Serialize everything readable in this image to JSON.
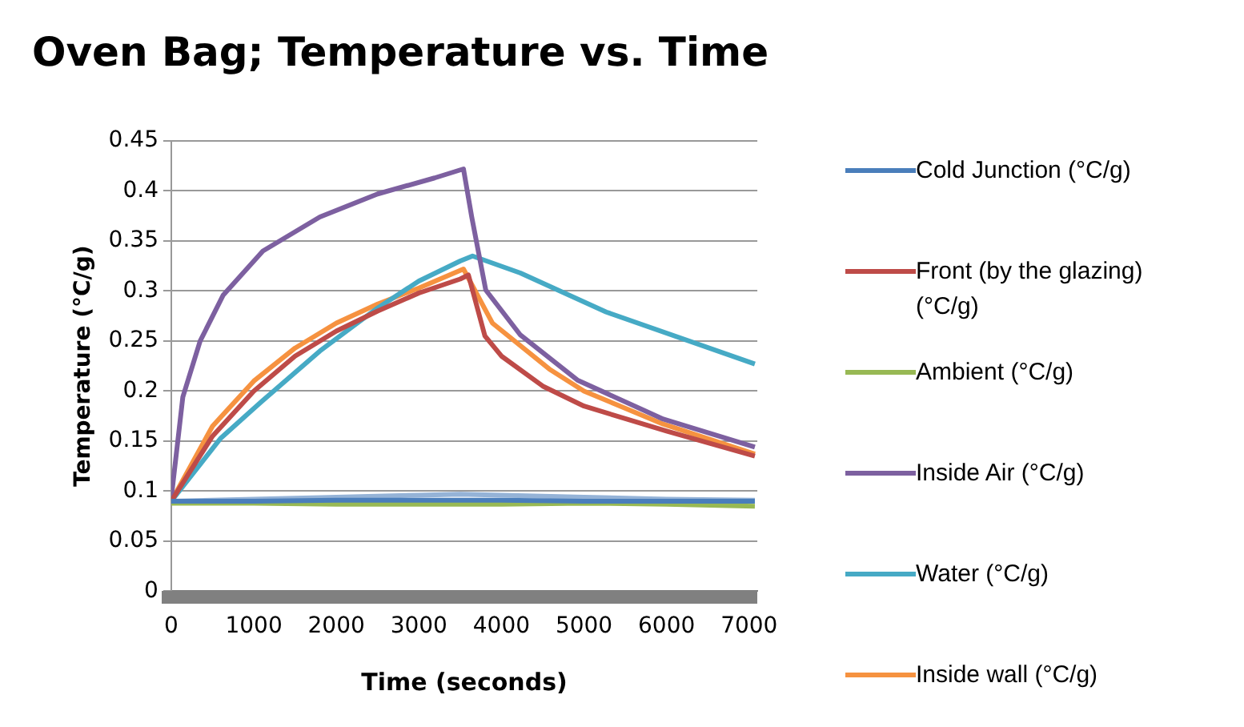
{
  "chart_data": {
    "type": "line",
    "title": "Oven Bag; Temperature vs. Time",
    "xlabel": "Time (seconds)",
    "ylabel": "Temperature (°C/g)",
    "xlim": [
      0,
      7100
    ],
    "xticks": [
      0,
      1000,
      2000,
      3000,
      4000,
      5000,
      6000,
      7000
    ],
    "ylim": [
      0,
      0.45
    ],
    "yticks": [
      0,
      0.05,
      0.1,
      0.15,
      0.2,
      0.25,
      0.3,
      0.35,
      0.4,
      0.45
    ],
    "grid": "y",
    "legend": "right",
    "marker": "none",
    "line_style": "solid",
    "series": [
      {
        "name": "Cold Junction (°C/g)",
        "color": "#4a7ebb",
        "x": [
          0,
          1000,
          2000,
          3000,
          4000,
          5000,
          6000,
          7070
        ],
        "values": [
          0.09,
          0.09,
          0.091,
          0.091,
          0.091,
          0.09,
          0.09,
          0.09
        ]
      },
      {
        "name": "Front (by the glazing) (°C/g)",
        "color": "#be4b48",
        "x": [
          0,
          500,
          1000,
          1500,
          2000,
          2500,
          3000,
          3500,
          3600,
          3800,
          4000,
          4500,
          5000,
          6000,
          7070
        ],
        "values": [
          0.09,
          0.155,
          0.2,
          0.235,
          0.26,
          0.28,
          0.298,
          0.312,
          0.316,
          0.255,
          0.235,
          0.205,
          0.185,
          0.16,
          0.135
        ]
      },
      {
        "name": "Ambient (°C/g)",
        "color": "#98b954",
        "x": [
          0,
          1000,
          2000,
          3000,
          4000,
          5000,
          6000,
          7070
        ],
        "values": [
          0.088,
          0.088,
          0.087,
          0.087,
          0.087,
          0.088,
          0.087,
          0.085
        ]
      },
      {
        "name": "Inside Air (°C/g)",
        "color": "#7d60a0",
        "x": [
          0,
          140,
          350,
          630,
          1110,
          1800,
          2500,
          3190,
          3540,
          3640,
          3810,
          4230,
          4920,
          5960,
          7070
        ],
        "values": [
          0.093,
          0.194,
          0.25,
          0.296,
          0.34,
          0.374,
          0.397,
          0.413,
          0.422,
          0.374,
          0.301,
          0.256,
          0.211,
          0.172,
          0.144
        ]
      },
      {
        "name": "Water (°C/g)",
        "color": "#46aac5",
        "x": [
          0,
          600,
          1100,
          1800,
          2500,
          3000,
          3500,
          3650,
          4230,
          5270,
          7070
        ],
        "values": [
          0.09,
          0.153,
          0.19,
          0.24,
          0.283,
          0.31,
          0.33,
          0.335,
          0.318,
          0.279,
          0.227
        ]
      },
      {
        "name": "Inside wall (°C/g)",
        "color": "#f69240",
        "x": [
          0,
          500,
          1000,
          1500,
          2000,
          2500,
          3000,
          3540,
          3890,
          4580,
          5000,
          5960,
          7070
        ],
        "values": [
          0.09,
          0.165,
          0.21,
          0.243,
          0.268,
          0.287,
          0.303,
          0.322,
          0.268,
          0.222,
          0.2,
          0.167,
          0.137
        ]
      },
      {
        "color": "#95b3d7",
        "x": [
          0,
          1000,
          2000,
          3000,
          3500,
          4000,
          5000,
          6000,
          7070
        ],
        "values": [
          0.09,
          0.092,
          0.094,
          0.096,
          0.097,
          0.096,
          0.094,
          0.092,
          0.091
        ]
      }
    ]
  }
}
